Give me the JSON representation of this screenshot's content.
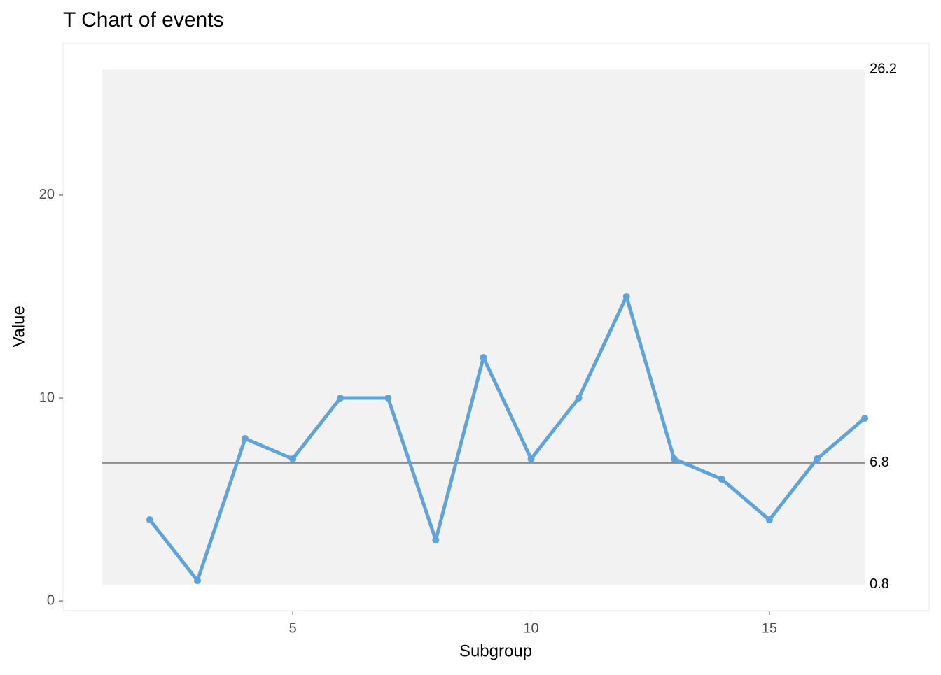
{
  "chart_data": {
    "type": "line",
    "title": "T Chart of events",
    "x_label": "Subgroup",
    "y_label": "Value",
    "x": [
      2,
      3,
      4,
      5,
      6,
      7,
      8,
      9,
      10,
      11,
      12,
      13,
      14,
      15,
      16,
      17
    ],
    "series": [
      {
        "color": "#5fa3d8",
        "values": [
          4,
          1,
          8,
          7,
          10,
          10,
          3,
          12,
          7,
          10,
          15,
          7,
          6,
          4,
          7,
          9
        ]
      }
    ],
    "center_line": 6.8,
    "ucl": 26.2,
    "lcl": 0.8,
    "limits_x": [
      1,
      17
    ],
    "xlim": [
      0.18,
      18.35
    ],
    "ylim": [
      -0.48,
      27.48
    ],
    "xticks": [
      5,
      10,
      15
    ],
    "yticks": [
      0,
      10,
      20
    ]
  }
}
